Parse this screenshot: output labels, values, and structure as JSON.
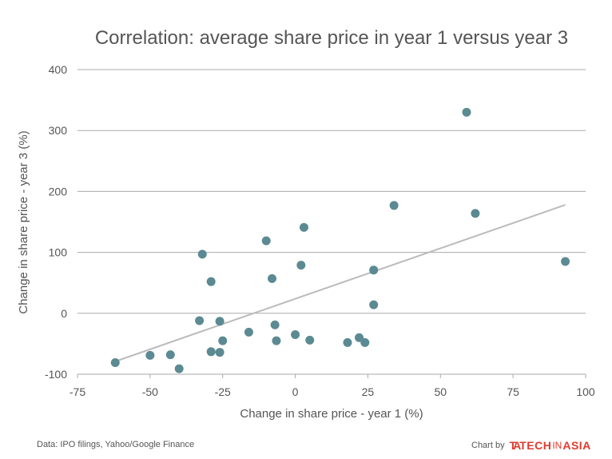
{
  "chart_data": {
    "type": "scatter",
    "title": "Correlation: average share price in year 1 versus year 3",
    "xlabel": "Change in share price - year 1 (%)",
    "ylabel": "Change in share price - year 3 (%)",
    "xlim": [
      -75,
      100
    ],
    "ylim": [
      -100,
      400
    ],
    "xticks": [
      -75,
      -50,
      -25,
      0,
      25,
      50,
      75,
      100
    ],
    "yticks": [
      -100,
      0,
      100,
      200,
      300,
      400
    ],
    "xtick_labels": [
      "-75",
      "-50",
      "-25",
      "0",
      "25",
      "50",
      "75",
      "100"
    ],
    "ytick_labels": [
      "-100",
      "0",
      "100",
      "200",
      "300",
      "400"
    ],
    "grid": "horizontal",
    "point_color": "#5b8a92",
    "trendline_color": "#bbbbbb",
    "trendline": {
      "x": [
        -62,
        93
      ],
      "y": [
        -79,
        178
      ]
    },
    "points": [
      {
        "x": -62,
        "y": -81
      },
      {
        "x": -50,
        "y": -69
      },
      {
        "x": -43,
        "y": -68
      },
      {
        "x": -40,
        "y": -91
      },
      {
        "x": -33,
        "y": -12
      },
      {
        "x": -32,
        "y": 97
      },
      {
        "x": -29,
        "y": 52
      },
      {
        "x": -29,
        "y": -63
      },
      {
        "x": -26,
        "y": -13
      },
      {
        "x": -26,
        "y": -64
      },
      {
        "x": -25,
        "y": -45
      },
      {
        "x": -16,
        "y": -31
      },
      {
        "x": -10,
        "y": 119
      },
      {
        "x": -8,
        "y": 57
      },
      {
        "x": -7,
        "y": -19
      },
      {
        "x": -6.5,
        "y": -45
      },
      {
        "x": 0,
        "y": -35
      },
      {
        "x": 2,
        "y": 79
      },
      {
        "x": 3,
        "y": 141
      },
      {
        "x": 5,
        "y": -44
      },
      {
        "x": 18,
        "y": -48
      },
      {
        "x": 22,
        "y": -40
      },
      {
        "x": 24,
        "y": -48
      },
      {
        "x": 27,
        "y": 71
      },
      {
        "x": 27,
        "y": 14
      },
      {
        "x": 34,
        "y": 177
      },
      {
        "x": 59,
        "y": 330
      },
      {
        "x": 62,
        "y": 164
      },
      {
        "x": 93,
        "y": 85
      }
    ]
  },
  "footer": {
    "source": "Data: IPO filings, Yahoo/Google Finance",
    "credit_prefix": "Chart by",
    "logo_mark": "TA",
    "logo_tech": "TECH",
    "logo_in": "IN",
    "logo_asia": "ASIA"
  }
}
